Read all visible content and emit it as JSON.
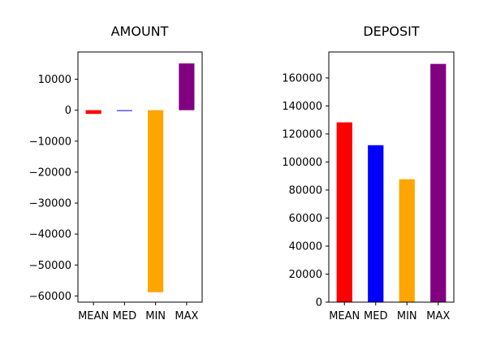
{
  "chart_data": [
    {
      "type": "bar",
      "title": "AMOUNT",
      "categories": [
        "MEAN",
        "MED",
        "MIN",
        "MAX"
      ],
      "values": [
        -1200,
        -200,
        -58800,
        15100
      ],
      "colors": [
        "#ff0000",
        "#0000ff",
        "#ffa500",
        "#800080"
      ],
      "xlabel": "",
      "ylabel": "",
      "ylim": [
        -62000,
        18800
      ],
      "yticks": [
        10000,
        0,
        -10000,
        -20000,
        -30000,
        -40000,
        -50000,
        -60000
      ],
      "ytick_labels": [
        "10000",
        "0",
        "−10000",
        "−20000",
        "−30000",
        "−40000",
        "−50000",
        "−60000"
      ],
      "grid": false
    },
    {
      "type": "bar",
      "title": "DEPOSIT",
      "categories": [
        "MEAN",
        "MED",
        "MIN",
        "MAX"
      ],
      "values": [
        128300,
        112000,
        87700,
        170000
      ],
      "colors": [
        "#ff0000",
        "#0000ff",
        "#ffa500",
        "#800080"
      ],
      "xlabel": "",
      "ylabel": "",
      "ylim": [
        0,
        178500
      ],
      "yticks": [
        0,
        20000,
        40000,
        60000,
        80000,
        100000,
        120000,
        140000,
        160000
      ],
      "ytick_labels": [
        "0",
        "20000",
        "40000",
        "60000",
        "80000",
        "100000",
        "120000",
        "140000",
        "160000"
      ],
      "grid": false
    }
  ]
}
